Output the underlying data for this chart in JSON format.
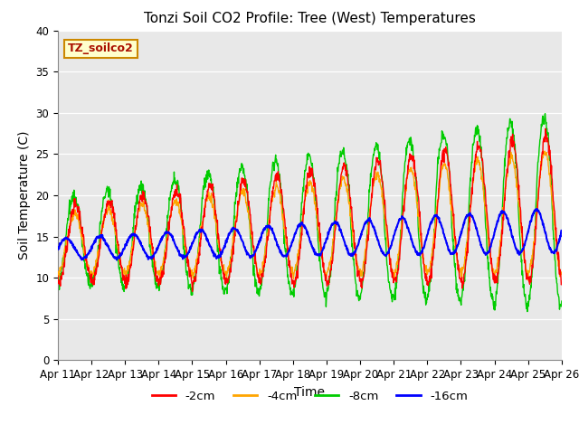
{
  "title": "Tonzi Soil CO2 Profile: Tree (West) Temperatures",
  "xlabel": "Time",
  "ylabel": "Soil Temperature (C)",
  "ylim": [
    0,
    40
  ],
  "xlim": [
    0,
    15
  ],
  "x_tick_labels": [
    "Apr 11",
    "Apr 12",
    "Apr 13",
    "Apr 14",
    "Apr 15",
    "Apr 16",
    "Apr 17",
    "Apr 18",
    "Apr 19",
    "Apr 20",
    "Apr 21",
    "Apr 22",
    "Apr 23",
    "Apr 24",
    "Apr 25",
    "Apr 26"
  ],
  "legend_labels": [
    "-2cm",
    "-4cm",
    "-8cm",
    "-16cm"
  ],
  "colors": [
    "#ff0000",
    "#ffa500",
    "#00cc00",
    "#0000ff"
  ],
  "annotation_text": "TZ_soilco2",
  "annotation_color": "#aa1100",
  "annotation_bg": "#ffffcc",
  "annotation_edge": "#cc8800",
  "bg_color": "#e8e8e8",
  "title_fontsize": 11,
  "axis_fontsize": 10,
  "tick_fontsize": 8.5
}
